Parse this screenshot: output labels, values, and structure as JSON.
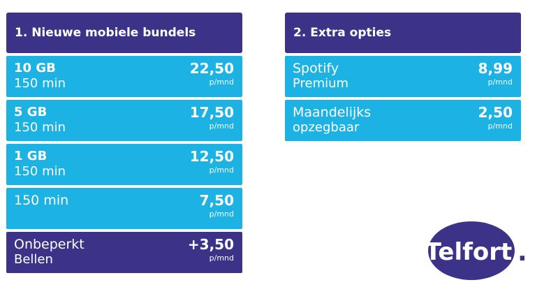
{
  "left": {
    "title": "1. Nieuwe mobiele bundels",
    "rows": [
      {
        "line1": "10 GB",
        "line2": "150 min",
        "price": "22,50",
        "unit": "p/mnd"
      },
      {
        "line1": "5 GB",
        "line2": "150 min",
        "price": "17,50",
        "unit": "p/mnd"
      },
      {
        "line1": "1 GB",
        "line2": "150 min",
        "price": "12,50",
        "unit": "p/mnd"
      },
      {
        "line1": "150 min",
        "price": "7,50",
        "unit": "p/mnd"
      },
      {
        "line1": "Onbeperkt",
        "line2": "Bellen",
        "price": "+3,50",
        "unit": "p/mnd"
      }
    ]
  },
  "right": {
    "title": "2. Extra opties",
    "rows": [
      {
        "line1": "Spotify",
        "line2": "Premium",
        "price": "8,99",
        "unit": "p/mnd"
      },
      {
        "line1": "Maandelijks",
        "line2": "opzegbaar",
        "price": "2,50",
        "unit": "p/mnd"
      }
    ]
  },
  "logo": {
    "text": "Telfort",
    "dot": "."
  },
  "colors": {
    "dark": "#3c3288",
    "light": "#1cb2e4",
    "text": "#ffffff"
  }
}
